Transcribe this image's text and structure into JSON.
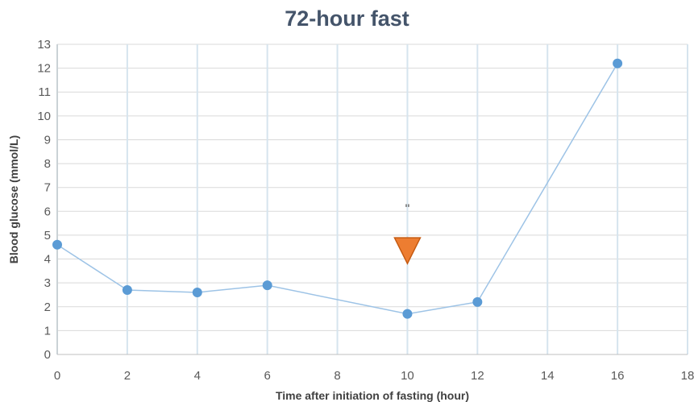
{
  "chart_data": {
    "type": "scatter",
    "title": "72-hour fast",
    "xlabel": "Time after initiation of fasting (hour)",
    "ylabel": "Blood glucose (mmol/L)",
    "xlim": [
      0,
      18
    ],
    "ylim": [
      0,
      13
    ],
    "xticks": [
      0,
      2,
      4,
      6,
      8,
      10,
      12,
      14,
      16,
      18
    ],
    "yticks": [
      0,
      1,
      2,
      3,
      4,
      5,
      6,
      7,
      8,
      9,
      10,
      11,
      12,
      13
    ],
    "grid": true,
    "series": [
      {
        "x": [
          0,
          2,
          4,
          6,
          10,
          12,
          16
        ],
        "y": [
          4.6,
          2.7,
          2.6,
          2.9,
          1.7,
          2.2,
          12.2
        ],
        "color": "#5b9bd5",
        "line_color": "#9dc3e6"
      }
    ],
    "annotation": {
      "marker": "triangle-down",
      "x": 10,
      "y": 4.35,
      "color": "#ed7d31",
      "text": "\"",
      "text_x": 10,
      "text_y": 6.15
    }
  }
}
